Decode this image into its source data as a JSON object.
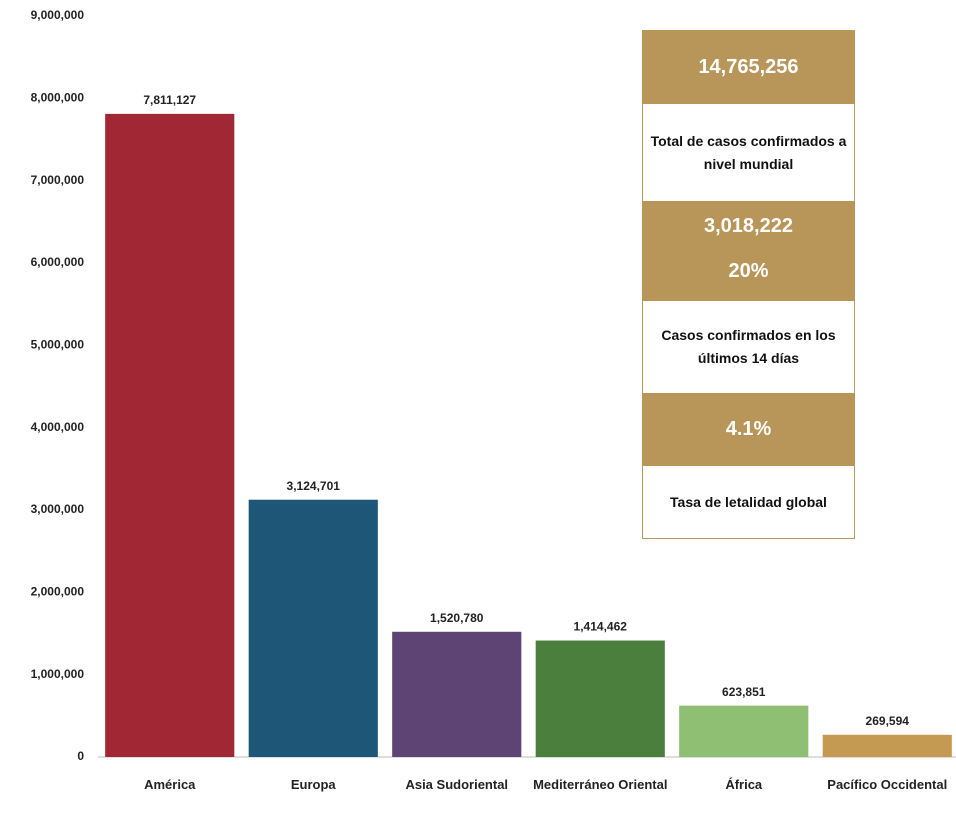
{
  "chart_data": {
    "type": "bar",
    "categories": [
      "América",
      "Europa",
      "Asia Sudoriental",
      "Mediterráneo Oriental",
      "África",
      "Pacífico Occidental"
    ],
    "values": [
      7811127,
      3124701,
      1520780,
      1414462,
      623851,
      269594
    ],
    "value_labels": [
      "7,811,127",
      "3,124,701",
      "1,520,780",
      "1,414,462",
      "623,851",
      "269,594"
    ],
    "colors": [
      "#a12735",
      "#1d5677",
      "#5e4474",
      "#4a7f3d",
      "#8fbf73",
      "#c49a52"
    ],
    "ylim": [
      0,
      9000000
    ],
    "yticks": [
      0,
      {
        "value": 1000000,
        "label": "1,000,000"
      },
      {
        "value": 2000000,
        "label": "2,000,000"
      },
      {
        "value": 3000000,
        "label": "3,000,000"
      },
      {
        "value": 4000000,
        "label": "4,000,000"
      },
      {
        "value": 5000000,
        "label": "5,000,000"
      },
      {
        "value": 6000000,
        "label": "6,000,000"
      },
      {
        "value": 7000000,
        "label": "7,000,000"
      },
      {
        "value": 8000000,
        "label": "8,000,000"
      },
      {
        "value": 9000000,
        "label": "9,000,000"
      }
    ],
    "grid": false
  },
  "panel": {
    "total": "14,765,256",
    "total_label": "Total de casos confirmados a nivel mundial",
    "recent": "3,018,222",
    "recent_pct": "20%",
    "recent_label": "Casos confirmados en los últimos 14 días",
    "lethality": "4.1%",
    "lethality_label": "Tasa de letalidad global"
  }
}
